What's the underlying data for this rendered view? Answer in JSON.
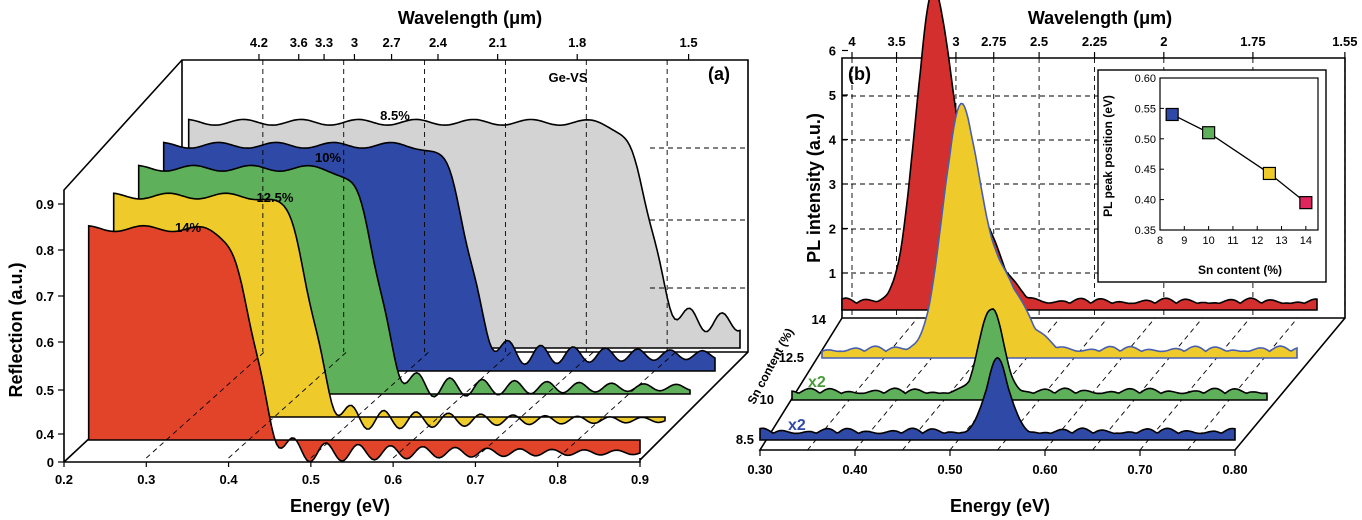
{
  "chart_data": [
    {
      "panel": "(a)",
      "type": "area",
      "xlabel": "Energy (eV)",
      "ylabel": "Reflection (a.u.)",
      "top_axis_label": "Wavelength (μm)",
      "x_ticks": [
        "0.2",
        "0.3",
        "0.4",
        "0.5",
        "0.6",
        "0.7",
        "0.8",
        "0.9"
      ],
      "y_ticks": [
        "0",
        "0.4",
        "0.5",
        "0.6",
        "0.7",
        "0.8",
        "0.9"
      ],
      "top_ticks": [
        "4.2",
        "3.6",
        "3.3",
        "3",
        "2.7",
        "2.4",
        "2.1",
        "1.8",
        "1.5"
      ],
      "xlim": [
        0.2,
        0.9
      ],
      "series": [
        {
          "name": "14%",
          "color": "#e2442a",
          "edge_energy": 0.43,
          "plateau": 0.87,
          "floor": 0.4
        },
        {
          "name": "12.5%",
          "color": "#eecb2a",
          "edge_energy": 0.47,
          "plateau": 0.89,
          "floor": 0.42
        },
        {
          "name": "10%",
          "color": "#5fb05a",
          "edge_energy": 0.52,
          "plateau": 0.9,
          "floor": 0.44
        },
        {
          "name": "8.5%",
          "color": "#2f49a6",
          "edge_energy": 0.6,
          "plateau": 0.9,
          "floor": 0.46
        },
        {
          "name": "Ge-VS",
          "color": "#d3d3d3",
          "edge_energy": 0.79,
          "plateau": 0.9,
          "floor": 0.48
        }
      ]
    },
    {
      "panel": "(b)",
      "type": "area",
      "xlabel": "Energy (eV)",
      "ylabel": "PL intensity (a.u.)",
      "top_axis_label": "Wavelength (μm)",
      "depth_label": "Sn content (%)",
      "x_ticks": [
        "0.30",
        "0.40",
        "0.50",
        "0.60",
        "0.70",
        "0.80"
      ],
      "y_ticks": [
        "1",
        "2",
        "3",
        "4",
        "5",
        "6"
      ],
      "top_ticks": [
        "4",
        "3.5",
        "3",
        "2.75",
        "2.5",
        "2.25",
        "2",
        "1.75",
        "1.55"
      ],
      "depth_ticks": [
        "8.5",
        "10",
        "12.5",
        "14"
      ],
      "xlim": [
        0.3,
        0.8
      ],
      "series": [
        {
          "name": "8.5",
          "color": "#2f49a6",
          "peak_energy": 0.55,
          "peak_intensity": 1.6,
          "multiplier": "x2"
        },
        {
          "name": "10",
          "color": "#5fb05a",
          "peak_energy": 0.51,
          "peak_intensity": 1.9,
          "multiplier": "x2"
        },
        {
          "name": "12.5",
          "color": "#eecb2a",
          "peak_energy": 0.445,
          "peak_intensity": 5.0
        },
        {
          "name": "14",
          "color": "#d32f2f",
          "peak_energy": 0.395,
          "peak_intensity": 6.4
        }
      ],
      "inset": {
        "type": "scatter",
        "xlabel": "Sn content (%)",
        "ylabel": "PL peak position (eV)",
        "x_ticks": [
          "8",
          "9",
          "10",
          "11",
          "12",
          "13",
          "14"
        ],
        "y_ticks": [
          "0.35",
          "0.40",
          "0.45",
          "0.50",
          "0.55",
          "0.60"
        ],
        "xlim": [
          8,
          14.5
        ],
        "ylim": [
          0.35,
          0.6
        ],
        "x": [
          8.5,
          10,
          12.5,
          14
        ],
        "y": [
          0.54,
          0.51,
          0.443,
          0.395
        ],
        "colors": [
          "#2f49a6",
          "#5fb05a",
          "#eecb2a",
          "#e0245e"
        ]
      }
    }
  ]
}
